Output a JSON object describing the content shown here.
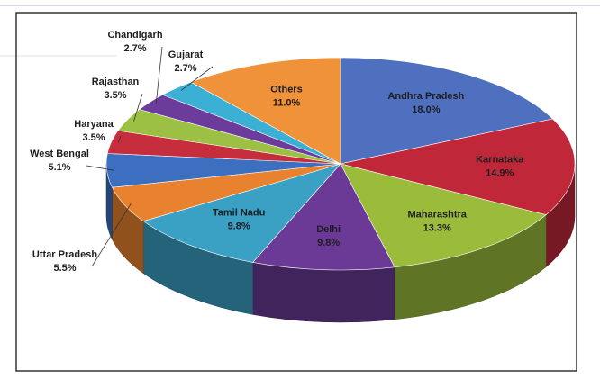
{
  "chart_data": {
    "type": "pie",
    "categories": [
      "Andhra Pradesh",
      "Karnataka",
      "Maharashtra",
      "Delhi",
      "Tamil Nadu",
      "Uttar Pradesh",
      "West Bengal",
      "Haryana",
      "Rajasthan",
      "Chandigarh",
      "Gujarat",
      "Others"
    ],
    "values": [
      18.0,
      14.9,
      13.3,
      9.8,
      9.8,
      5.5,
      5.1,
      3.5,
      3.5,
      2.7,
      2.7,
      11.0
    ],
    "value_labels": [
      "18.0%",
      "14.9%",
      "13.3%",
      "9.8%",
      "9.8%",
      "5.5%",
      "5.1%",
      "3.5%",
      "3.5%",
      "2.7%",
      "2.7%",
      "11.0%"
    ],
    "colors": [
      "#4f6fbf",
      "#c0283a",
      "#9bbb3b",
      "#6a3a96",
      "#3aa0c4",
      "#e9822f",
      "#3d6fc0",
      "#c62e3d",
      "#9cc043",
      "#6b3c9c",
      "#3bb0d4",
      "#f0923a"
    ]
  }
}
